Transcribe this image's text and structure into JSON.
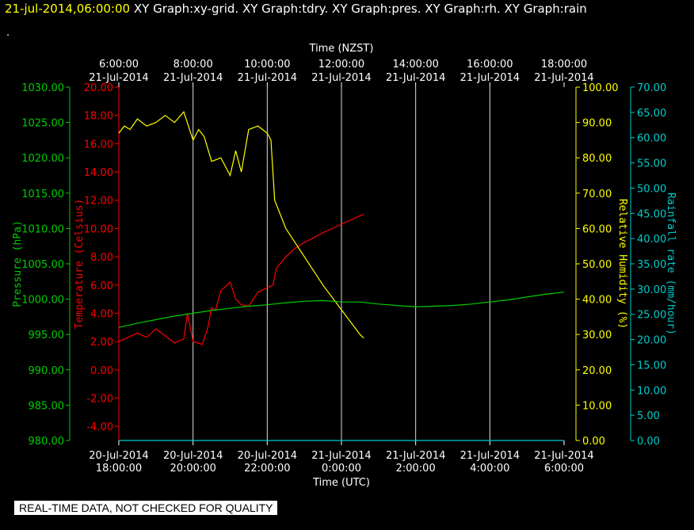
{
  "header": {
    "timestamp": "21-jul-2014,06:00:00",
    "graphs": "XY Graph:xy-grid.  XY Graph:tdry.  XY Graph:pres.  XY Graph:rh.  XY Graph:rain",
    "dot": "."
  },
  "quality_note": "REAL-TIME DATA, NOT CHECKED FOR QUALITY",
  "colors": {
    "pressure": "#00cc00",
    "temperature": "#ff0000",
    "humidity": "#ffff00",
    "rainfall": "#00cccc",
    "grid": "#ffffff"
  },
  "chart_data": {
    "type": "line",
    "title": "",
    "x_range_utc_hours": [
      18,
      30
    ],
    "top_axis": {
      "label": "Time (NZST)",
      "ticks": [
        {
          "time": "6:00:00",
          "date": "21-Jul-2014"
        },
        {
          "time": "8:00:00",
          "date": "21-Jul-2014"
        },
        {
          "time": "10:00:00",
          "date": "21-Jul-2014"
        },
        {
          "time": "12:00:00",
          "date": "21-Jul-2014"
        },
        {
          "time": "14:00:00",
          "date": "21-Jul-2014"
        },
        {
          "time": "16:00:00",
          "date": "21-Jul-2014"
        },
        {
          "time": "18:00:00",
          "date": "21-Jul-2014"
        }
      ]
    },
    "bottom_axis": {
      "label": "Time (UTC)",
      "ticks": [
        {
          "date": "20-Jul-2014",
          "time": "18:00:00"
        },
        {
          "date": "20-Jul-2014",
          "time": "20:00:00"
        },
        {
          "date": "20-Jul-2014",
          "time": "22:00:00"
        },
        {
          "date": "21-Jul-2014",
          "time": "0:00:00"
        },
        {
          "date": "21-Jul-2014",
          "time": "2:00:00"
        },
        {
          "date": "21-Jul-2014",
          "time": "4:00:00"
        },
        {
          "date": "21-Jul-2014",
          "time": "6:00:00"
        }
      ]
    },
    "axes": {
      "pressure": {
        "label": "Pressure (hPa)",
        "range": [
          980,
          1030
        ],
        "ticks": [
          "980.00",
          "985.00",
          "990.00",
          "995.00",
          "1000.00",
          "1005.00",
          "1010.00",
          "1015.00",
          "1020.00",
          "1025.00",
          "1030.00"
        ]
      },
      "temperature": {
        "label": "Temperature (Celsius)",
        "range": [
          -5,
          20
        ],
        "ticks": [
          "-4.00",
          "-2.00",
          "0.00",
          "2.00",
          "4.00",
          "6.00",
          "8.00",
          "10.00",
          "12.00",
          "14.00",
          "16.00",
          "18.00",
          "20.00"
        ]
      },
      "humidity": {
        "label": "Relative Humidity (%)",
        "range": [
          0,
          100
        ],
        "ticks": [
          "0.00",
          "10.00",
          "20.00",
          "30.00",
          "40.00",
          "50.00",
          "60.00",
          "70.00",
          "80.00",
          "90.00",
          "100.00"
        ]
      },
      "rainfall": {
        "label": "Rainfall rate (mm/hour)",
        "range": [
          0,
          70
        ],
        "ticks": [
          "0.00",
          "5.00",
          "10.00",
          "15.00",
          "20.00",
          "25.00",
          "30.00",
          "35.00",
          "40.00",
          "45.00",
          "50.00",
          "55.00",
          "60.00",
          "65.00",
          "70.00"
        ]
      }
    },
    "series": [
      {
        "key": "temperature",
        "x_utc_hours": [
          18,
          18.25,
          18.5,
          18.75,
          19,
          19.25,
          19.5,
          19.75,
          19.85,
          20,
          20.25,
          20.4,
          20.5,
          20.6,
          20.75,
          21,
          21.15,
          21.3,
          21.5,
          21.75,
          22,
          22.15,
          22.25,
          22.5,
          22.75,
          23,
          23.5,
          24,
          24.5,
          24.6
        ],
        "values": [
          2.0,
          2.3,
          2.6,
          2.3,
          2.9,
          2.4,
          1.9,
          2.2,
          4.0,
          2.0,
          1.8,
          3.0,
          4.4,
          4.2,
          5.6,
          6.2,
          5.0,
          4.6,
          4.5,
          5.5,
          5.8,
          6.0,
          7.2,
          8.0,
          8.6,
          9.0,
          9.7,
          10.3,
          10.9,
          11.0
        ]
      },
      {
        "key": "humidity",
        "x_utc_hours": [
          18,
          18.15,
          18.3,
          18.5,
          18.75,
          19,
          19.25,
          19.5,
          19.75,
          20,
          20.15,
          20.3,
          20.5,
          20.75,
          21,
          21.15,
          21.3,
          21.5,
          21.75,
          22,
          22.1,
          22.2,
          22.5,
          23,
          23.5,
          24,
          24.5,
          24.6
        ],
        "values": [
          87,
          89,
          88,
          91,
          89,
          90,
          92,
          90,
          93,
          85,
          88,
          86,
          79,
          80,
          75,
          82,
          76,
          88,
          89,
          87,
          85,
          68,
          60,
          52,
          44,
          37,
          30,
          29
        ]
      },
      {
        "key": "pressure",
        "x_utc_hours": [
          18,
          18.5,
          19,
          19.5,
          20,
          20.5,
          21,
          21.5,
          22,
          22.5,
          23,
          23.5,
          24,
          24.5,
          25,
          25.5,
          26,
          26.5,
          27,
          27.5,
          28,
          28.5,
          29,
          29.5,
          30
        ],
        "values": [
          996.0,
          996.6,
          997.1,
          997.6,
          998.0,
          998.4,
          998.7,
          999.0,
          999.2,
          999.5,
          999.7,
          999.8,
          999.6,
          999.6,
          999.3,
          999.1,
          998.9,
          999.0,
          999.1,
          999.3,
          999.6,
          999.9,
          1000.3,
          1000.7,
          1001.0
        ]
      },
      {
        "key": "rainfall",
        "x_utc_hours": [
          18,
          30
        ],
        "values": [
          0,
          0
        ]
      }
    ]
  }
}
